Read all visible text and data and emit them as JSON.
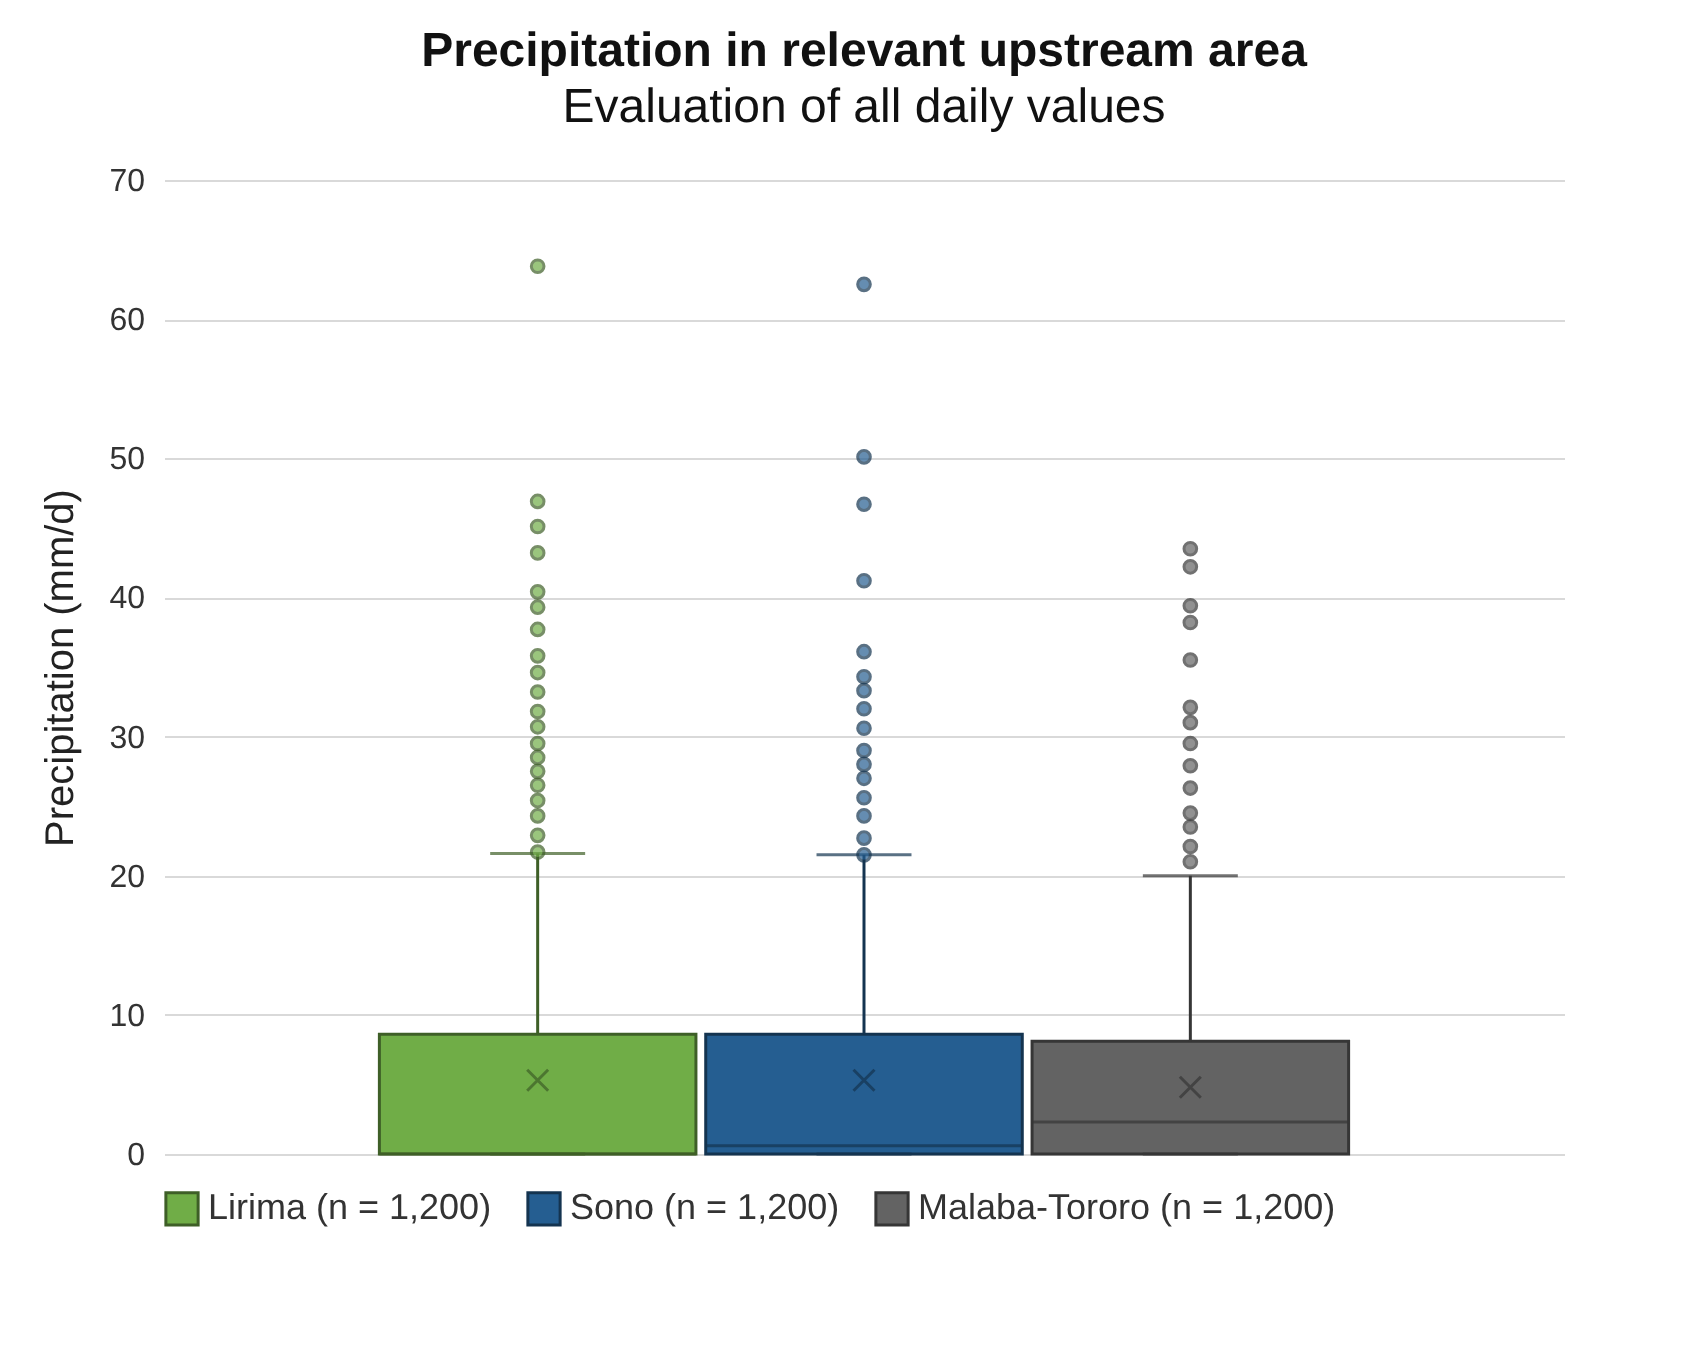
{
  "chart_data": {
    "type": "box",
    "title": "Precipitation in relevant upstream area",
    "subtitle": "Evaluation of all daily values",
    "ylabel": "Precipitation (mm/d)",
    "categories": [
      null
    ],
    "series": [
      {
        "name": "Lirima (n = 1,200)",
        "color": "#70ad47",
        "boxes": [
          {
            "low": 0,
            "q1": 0,
            "median": 0,
            "q3": 8.6,
            "high": 21.6,
            "mean": 5.3,
            "outliers": [
              63.8,
              46.9,
              45.1,
              43.2,
              40.4,
              39.3,
              37.7,
              35.8,
              34.6,
              33.2,
              31.8,
              30.7,
              29.5,
              28.5,
              27.5,
              26.5,
              25.4,
              24.3,
              22.9,
              21.7
            ]
          }
        ]
      },
      {
        "name": "Sono (n = 1,200)",
        "color": "#255e91",
        "boxes": [
          {
            "low": 0,
            "q1": 0,
            "median": 0.6,
            "q3": 8.6,
            "high": 21.5,
            "mean": 5.3,
            "outliers": [
              62.5,
              50.1,
              46.7,
              41.2,
              36.1,
              34.3,
              33.3,
              32.0,
              30.6,
              29.0,
              28.0,
              27.0,
              25.6,
              24.3,
              22.7,
              21.5
            ]
          }
        ]
      },
      {
        "name": "Malaba-Tororo (n = 1,200)",
        "color": "#636363",
        "boxes": [
          {
            "low": 0,
            "q1": 0,
            "median": 2.3,
            "q3": 8.1,
            "high": 20.0,
            "mean": 4.8,
            "outliers": [
              43.5,
              42.2,
              39.4,
              38.2,
              35.5,
              32.1,
              31.0,
              29.5,
              27.9,
              26.3,
              24.5,
              23.5,
              22.1,
              21.0
            ]
          }
        ]
      }
    ],
    "ylim": [
      0,
      70
    ],
    "yticks": [
      0,
      10,
      20,
      30,
      40,
      50,
      60,
      70
    ],
    "grid": "y",
    "legend": "bottom"
  }
}
